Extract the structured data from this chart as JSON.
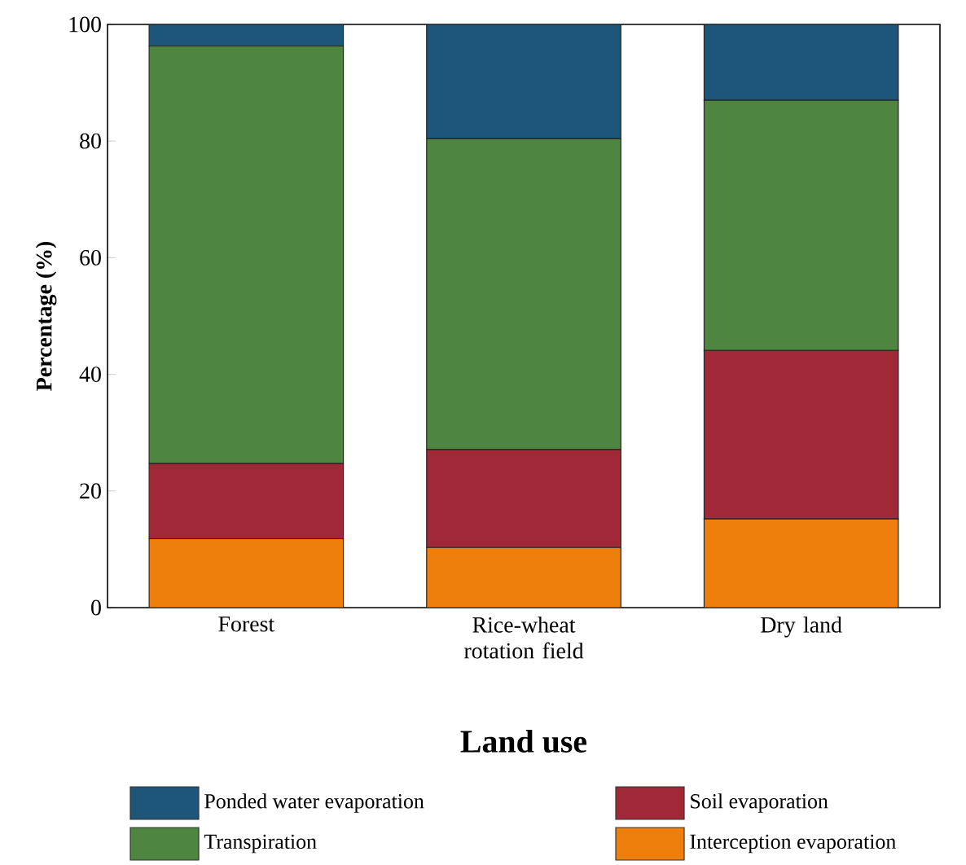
{
  "chart_data": {
    "type": "bar",
    "stacked": true,
    "xlabel": "Land use",
    "ylabel": "Percentage (%)",
    "categories": [
      "Forest",
      "Rice-wheat rotation field",
      "Dry land"
    ],
    "series": [
      {
        "name": "Interception evaporation",
        "color": "#ee7f0c",
        "values": [
          11.8,
          10.3,
          15.2
        ]
      },
      {
        "name": "Soil evaporation",
        "color": "#a12837",
        "values": [
          12.9,
          16.8,
          28.9
        ]
      },
      {
        "name": "Transpiration",
        "color": "#4e8641",
        "values": [
          71.6,
          53.3,
          42.9
        ]
      },
      {
        "name": "Ponded water evaporation",
        "color": "#1d5678",
        "values": [
          3.7,
          19.6,
          13.0
        ]
      }
    ],
    "ylim": [
      0,
      100
    ],
    "yticks": [
      0,
      20,
      40,
      60,
      80,
      100
    ],
    "grid": false,
    "legend": "bottom"
  }
}
